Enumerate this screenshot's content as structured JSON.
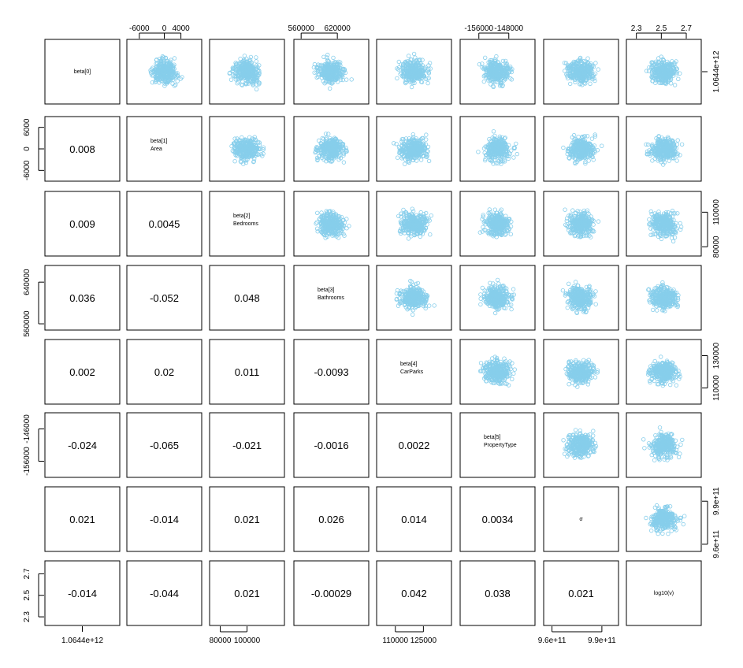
{
  "chart_data": {
    "type": "scatter",
    "layout": "pairs-matrix",
    "variables": [
      {
        "label": "beta[0]",
        "sublabel": ""
      },
      {
        "label": "beta[1]",
        "sublabel": "Area"
      },
      {
        "label": "beta[2]",
        "sublabel": "Bedrooms"
      },
      {
        "label": "beta[3]",
        "sublabel": "Bathrooms"
      },
      {
        "label": "beta[4]",
        "sublabel": "CarParks"
      },
      {
        "label": "beta[5]",
        "sublabel": "PropertyType"
      },
      {
        "label": "σ",
        "sublabel": ""
      },
      {
        "label": "log10(ν)",
        "sublabel": ""
      }
    ],
    "correlations": [
      [
        "0.008"
      ],
      [
        "0.009",
        "0.0045"
      ],
      [
        "0.036",
        "-0.052",
        "0.048"
      ],
      [
        "0.002",
        "0.02",
        "0.011",
        "-0.0093"
      ],
      [
        "-0.024",
        "-0.065",
        "-0.021",
        "-0.0016",
        "0.0022"
      ],
      [
        "0.021",
        "-0.014",
        "0.021",
        "0.026",
        "0.014",
        "0.0034"
      ],
      [
        "-0.014",
        "-0.044",
        "0.021",
        "-0.00029",
        "0.042",
        "0.038",
        "0.021"
      ]
    ],
    "ranges": [
      [
        1064200000000.0,
        1064600000000.0
      ],
      [
        -9000,
        9000
      ],
      [
        72000,
        128000
      ],
      [
        548000,
        672000
      ],
      [
        100000,
        140000
      ],
      [
        -161000,
        -141000
      ],
      [
        955000000000.0,
        1000000000000.0
      ],
      [
        2.22,
        2.82
      ]
    ],
    "axis_ticks": {
      "top": [
        {
          "col": 1,
          "values": [
            -6000,
            0,
            4000
          ],
          "labels": [
            "-6000",
            "0",
            "4000"
          ]
        },
        {
          "col": 3,
          "values": [
            560000,
            620000
          ],
          "labels": [
            "560000",
            "620000"
          ]
        },
        {
          "col": 5,
          "values": [
            -156000,
            -148000
          ],
          "labels": [
            "-156000",
            "-148000"
          ]
        },
        {
          "col": 7,
          "values": [
            2.3,
            2.5,
            2.7
          ],
          "labels": [
            "2.3",
            "2.5",
            "2.7"
          ]
        }
      ],
      "right": [
        {
          "row": 0,
          "values": [
            1064400000000.0
          ],
          "labels": [
            "1.0644e+12"
          ]
        },
        {
          "row": 2,
          "values": [
            80000,
            110000
          ],
          "labels": [
            "80000",
            "110000"
          ]
        },
        {
          "row": 4,
          "values": [
            110000,
            130000
          ],
          "labels": [
            "110000",
            "130000"
          ]
        },
        {
          "row": 6,
          "values": [
            960000000000.0,
            990000000000.0
          ],
          "labels": [
            "9.6e+11",
            "9.9e+11"
          ]
        }
      ],
      "bottom": [
        {
          "col": 0,
          "values": [
            1064400000000.0
          ],
          "labels": [
            "1.0644e+12"
          ]
        },
        {
          "col": 2,
          "values": [
            80000,
            100000
          ],
          "labels": [
            "80000",
            "100000"
          ]
        },
        {
          "col": 4,
          "values": [
            110000,
            125000
          ],
          "labels": [
            "110000",
            "125000"
          ]
        },
        {
          "col": 6,
          "values": [
            960000000000.0,
            990000000000.0
          ],
          "labels": [
            "9.6e+11",
            "9.9e+11"
          ]
        }
      ],
      "left": [
        {
          "row": 1,
          "values": [
            -6000,
            0,
            6000
          ],
          "labels": [
            "-6000",
            "0",
            "6000"
          ]
        },
        {
          "row": 3,
          "values": [
            560000,
            640000
          ],
          "labels": [
            "560000",
            "640000"
          ]
        },
        {
          "row": 5,
          "values": [
            -156000,
            -146000
          ],
          "labels": [
            "-156000",
            "-146000"
          ]
        },
        {
          "row": 7,
          "values": [
            2.3,
            2.5,
            2.7
          ],
          "labels": [
            "2.3",
            "2.5",
            "2.7"
          ]
        }
      ]
    },
    "point_color": "#87ceeb",
    "title": "",
    "grid": false,
    "legend": "none"
  }
}
